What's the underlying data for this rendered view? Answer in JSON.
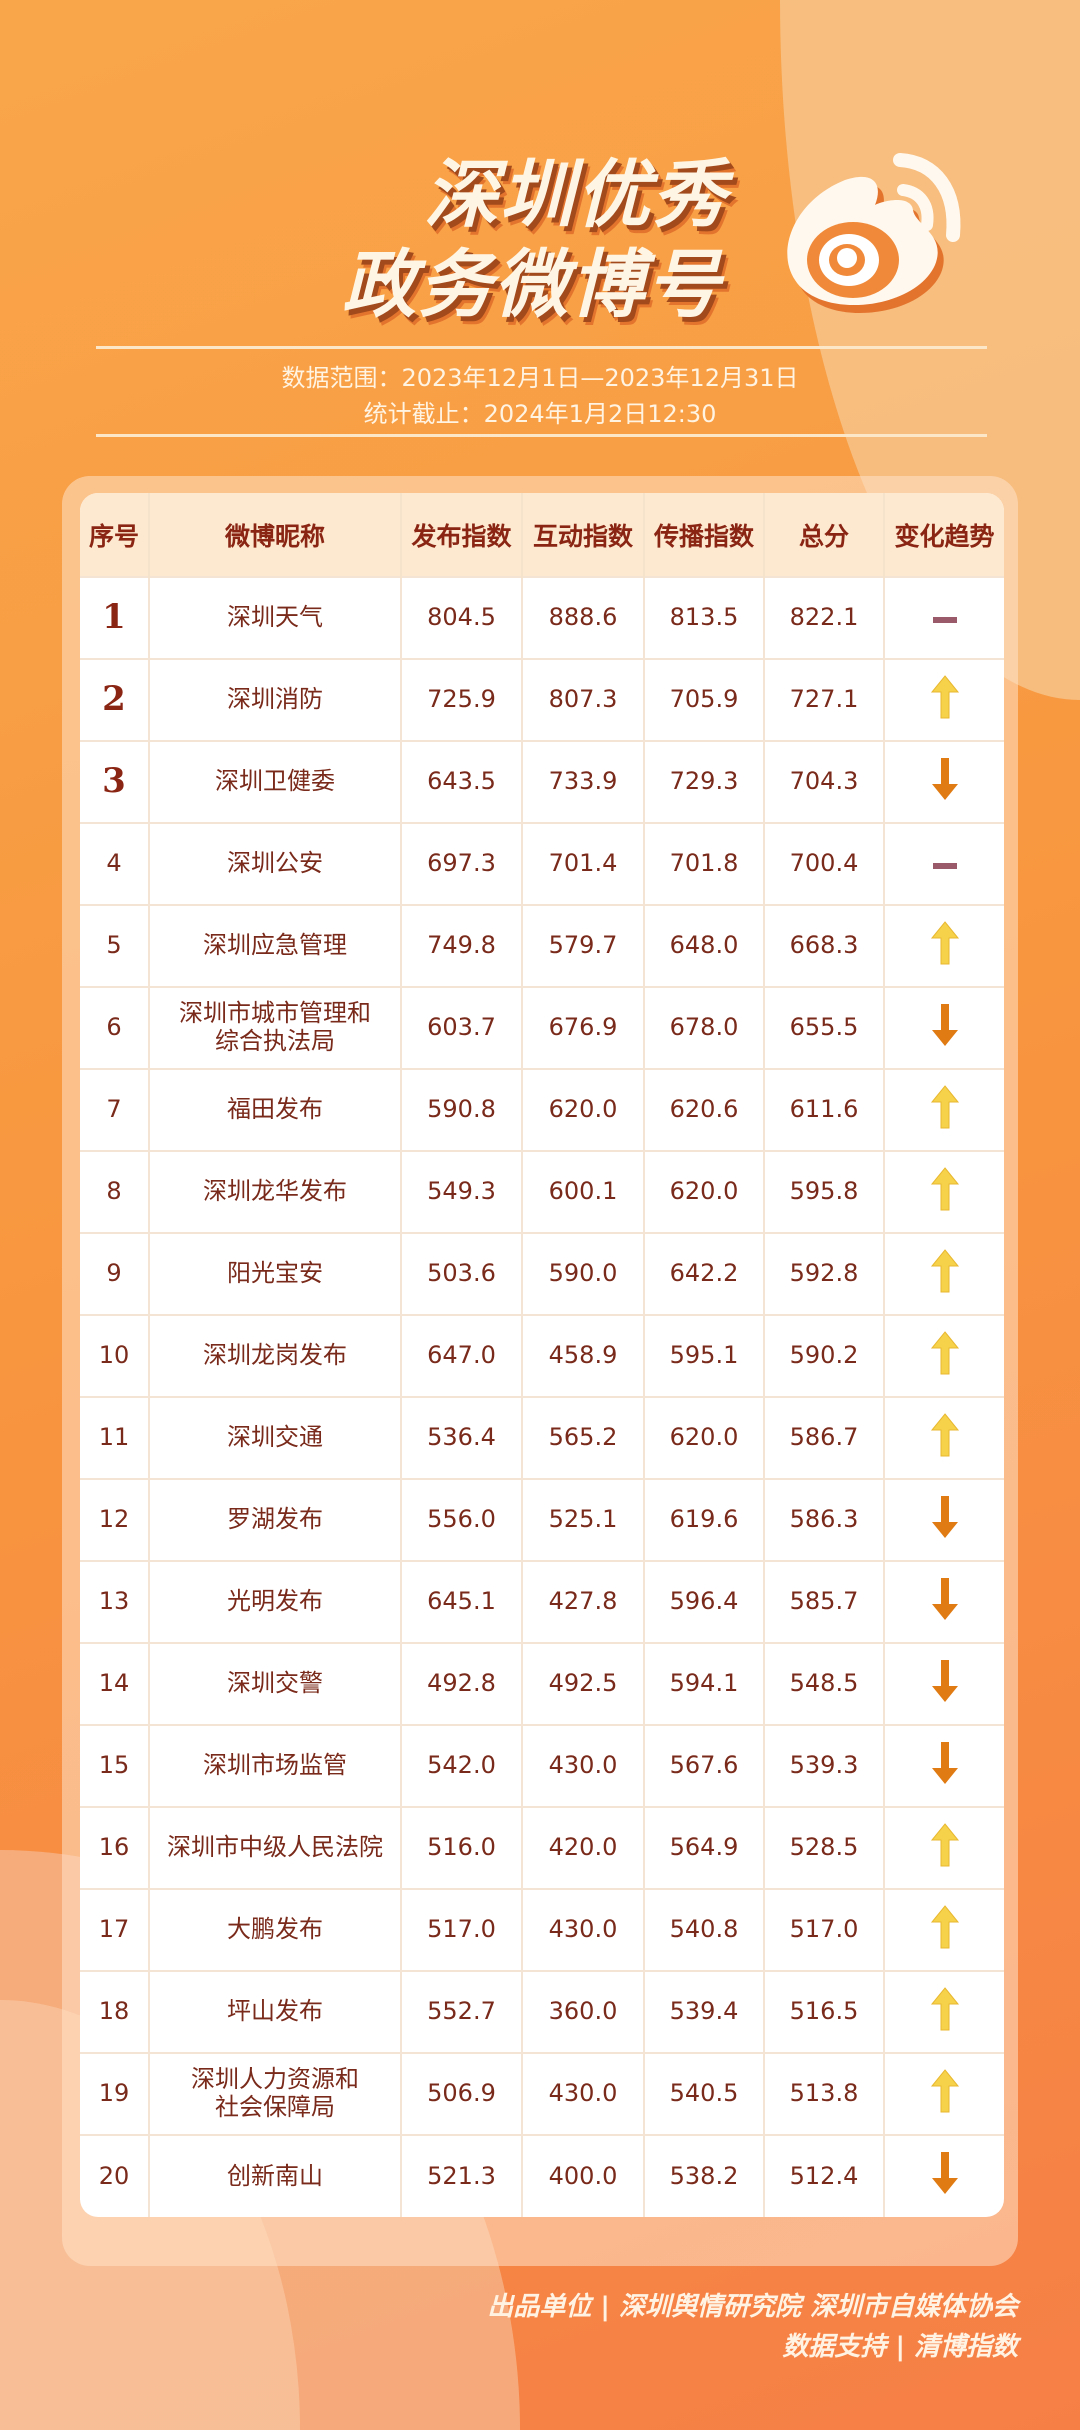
{
  "title": {
    "line1": "深圳优秀",
    "line2": "政务微博号"
  },
  "subtitle": {
    "range": "数据范围：2023年12月1日—2023年12月31日",
    "cutoff": "统计截止：2024年1月2日12:30"
  },
  "colors": {
    "up": "#f6d24a",
    "down": "#e07a12",
    "same": "#9a5a6a",
    "text": "#7a2a1a"
  },
  "table": {
    "headers": [
      "序号",
      "微博昵称",
      "发布指数",
      "互动指数",
      "传播指数",
      "总分",
      "变化趋势"
    ],
    "rows": [
      [
        "1",
        "深圳天气",
        "804.5",
        "888.6",
        "813.5",
        "822.1",
        "same"
      ],
      [
        "2",
        "深圳消防",
        "725.9",
        "807.3",
        "705.9",
        "727.1",
        "up"
      ],
      [
        "3",
        "深圳卫健委",
        "643.5",
        "733.9",
        "729.3",
        "704.3",
        "down"
      ],
      [
        "4",
        "深圳公安",
        "697.3",
        "701.4",
        "701.8",
        "700.4",
        "same"
      ],
      [
        "5",
        "深圳应急管理",
        "749.8",
        "579.7",
        "648.0",
        "668.3",
        "up"
      ],
      [
        "6",
        "深圳市城市管理和\n综合执法局",
        "603.7",
        "676.9",
        "678.0",
        "655.5",
        "down"
      ],
      [
        "7",
        "福田发布",
        "590.8",
        "620.0",
        "620.6",
        "611.6",
        "up"
      ],
      [
        "8",
        "深圳龙华发布",
        "549.3",
        "600.1",
        "620.0",
        "595.8",
        "up"
      ],
      [
        "9",
        "阳光宝安",
        "503.6",
        "590.0",
        "642.2",
        "592.8",
        "up"
      ],
      [
        "10",
        "深圳龙岗发布",
        "647.0",
        "458.9",
        "595.1",
        "590.2",
        "up"
      ],
      [
        "11",
        "深圳交通",
        "536.4",
        "565.2",
        "620.0",
        "586.7",
        "up"
      ],
      [
        "12",
        "罗湖发布",
        "556.0",
        "525.1",
        "619.6",
        "586.3",
        "down"
      ],
      [
        "13",
        "光明发布",
        "645.1",
        "427.8",
        "596.4",
        "585.7",
        "down"
      ],
      [
        "14",
        "深圳交警",
        "492.8",
        "492.5",
        "594.1",
        "548.5",
        "down"
      ],
      [
        "15",
        "深圳市场监管",
        "542.0",
        "430.0",
        "567.6",
        "539.3",
        "down"
      ],
      [
        "16",
        "深圳市中级人民法院",
        "516.0",
        "420.0",
        "564.9",
        "528.5",
        "up"
      ],
      [
        "17",
        "大鹏发布",
        "517.0",
        "430.0",
        "540.8",
        "517.0",
        "up"
      ],
      [
        "18",
        "坪山发布",
        "552.7",
        "360.0",
        "539.4",
        "516.5",
        "up"
      ],
      [
        "19",
        "深圳人力资源和\n社会保障局",
        "506.9",
        "430.0",
        "540.5",
        "513.8",
        "up"
      ],
      [
        "20",
        "创新南山",
        "521.3",
        "400.0",
        "538.2",
        "512.4",
        "down"
      ]
    ]
  },
  "footer": {
    "producer": "出品单位 | 深圳舆情研究院 深圳市自媒体协会",
    "data_support": "数据支持 | 清博指数"
  }
}
